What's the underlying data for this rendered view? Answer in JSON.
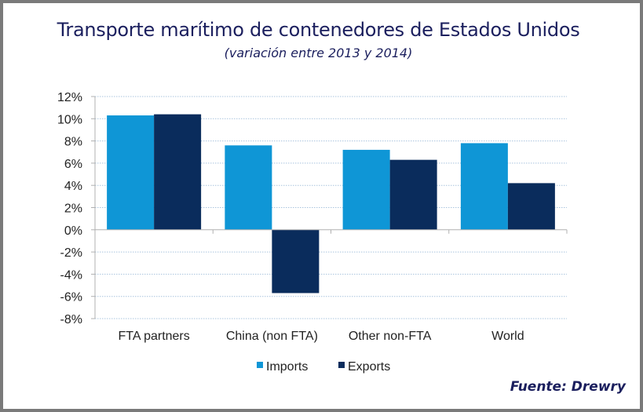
{
  "chart_data": {
    "type": "bar",
    "title": "Transporte marítimo de contenedores de Estados Unidos",
    "subtitle": "(variación entre 2013 y 2014)",
    "source": "Fuente: Drewry",
    "xlabel": "",
    "ylabel": "",
    "categories": [
      "FTA partners",
      "China (non FTA)",
      "Other non-FTA",
      "World"
    ],
    "series": [
      {
        "name": "Imports",
        "color": "#0f96d6",
        "values": [
          10.3,
          7.6,
          7.2,
          7.8
        ]
      },
      {
        "name": "Exports",
        "color": "#0a2c5c",
        "values": [
          10.4,
          -5.7,
          6.3,
          4.2
        ]
      }
    ],
    "ylim": [
      -8,
      12
    ],
    "yticks": [
      12,
      10,
      8,
      6,
      4,
      2,
      0,
      -2,
      -4,
      -6,
      -8
    ],
    "ytick_labels": [
      "12%",
      "10%",
      "8%",
      "6%",
      "4%",
      "2%",
      "0%",
      "-2%",
      "-4%",
      "-6%",
      "-8%"
    ],
    "grid": true,
    "legend_position": "bottom-center"
  }
}
